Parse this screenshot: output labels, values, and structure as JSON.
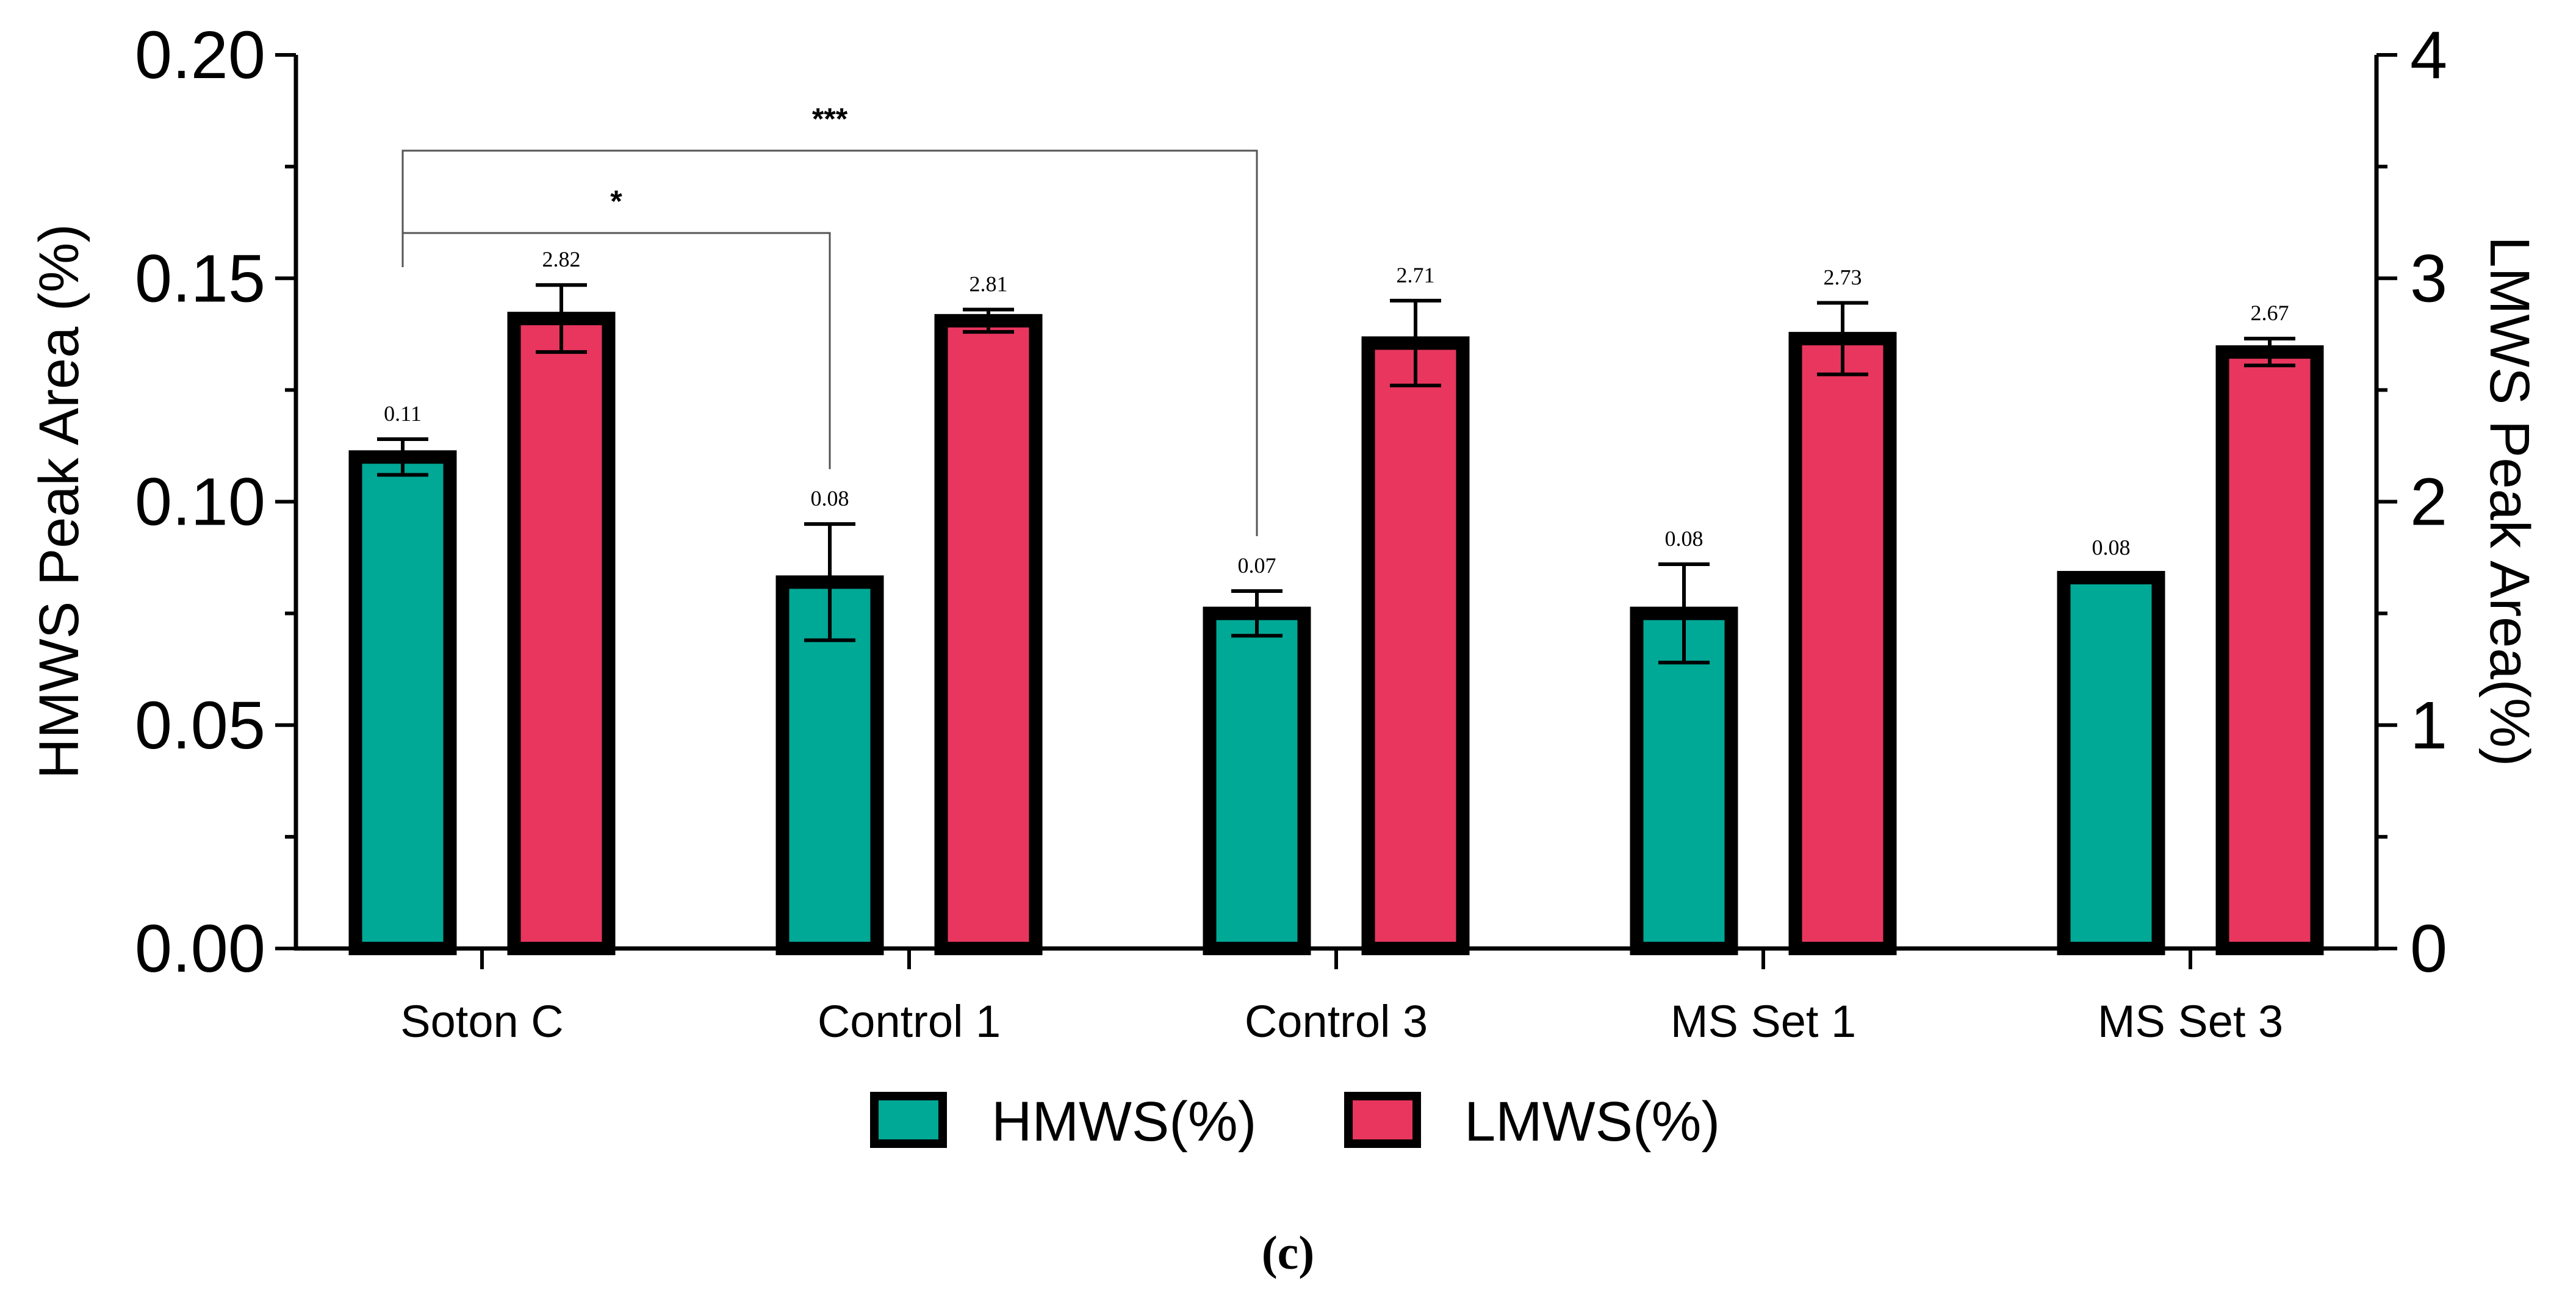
{
  "chart_data": {
    "type": "bar",
    "categories": [
      "Soton C",
      "Control 1",
      "Control 3",
      "MS Set 1",
      "MS Set 3"
    ],
    "series": [
      {
        "name": "HMWS(%)",
        "axis": "left",
        "color": "#00a896",
        "values": [
          0.11,
          0.082,
          0.075,
          0.075,
          0.083
        ],
        "errors": [
          0.004,
          0.013,
          0.005,
          0.011,
          0.001
        ],
        "data_labels": [
          "0.11",
          "0.08",
          "0.07",
          "0.08",
          "0.08"
        ]
      },
      {
        "name": "LMWS(%)",
        "axis": "right",
        "color": "#e8365e",
        "values": [
          2.82,
          2.81,
          2.71,
          2.73,
          2.67
        ],
        "errors": [
          0.15,
          0.05,
          0.19,
          0.16,
          0.06
        ],
        "data_labels": [
          "2.82",
          "2.81",
          "2.71",
          "2.73",
          "2.67"
        ]
      }
    ],
    "y_left": {
      "label": "HMWS Peak Area (%)",
      "ylim": [
        0,
        0.2
      ],
      "ticks": [
        0,
        0.05,
        0.1,
        0.15,
        0.2
      ],
      "tick_labels": [
        "0.00",
        "0.05",
        "0.10",
        "0.15",
        "0.20"
      ]
    },
    "y_right": {
      "label": "LMWS Peak Area(%)",
      "ylim": [
        0,
        4
      ],
      "ticks": [
        0,
        1,
        2,
        3,
        4
      ],
      "tick_labels": [
        "0",
        "1",
        "2",
        "3",
        "4"
      ]
    },
    "significance": [
      {
        "from": "Soton C",
        "to": "Control 1",
        "label": "*"
      },
      {
        "from": "Soton C",
        "to": "Control 3",
        "label": "***"
      }
    ],
    "legend": [
      "HMWS(%)",
      "LMWS(%)"
    ],
    "legend_position": "bottom-center",
    "caption": "(c)"
  }
}
